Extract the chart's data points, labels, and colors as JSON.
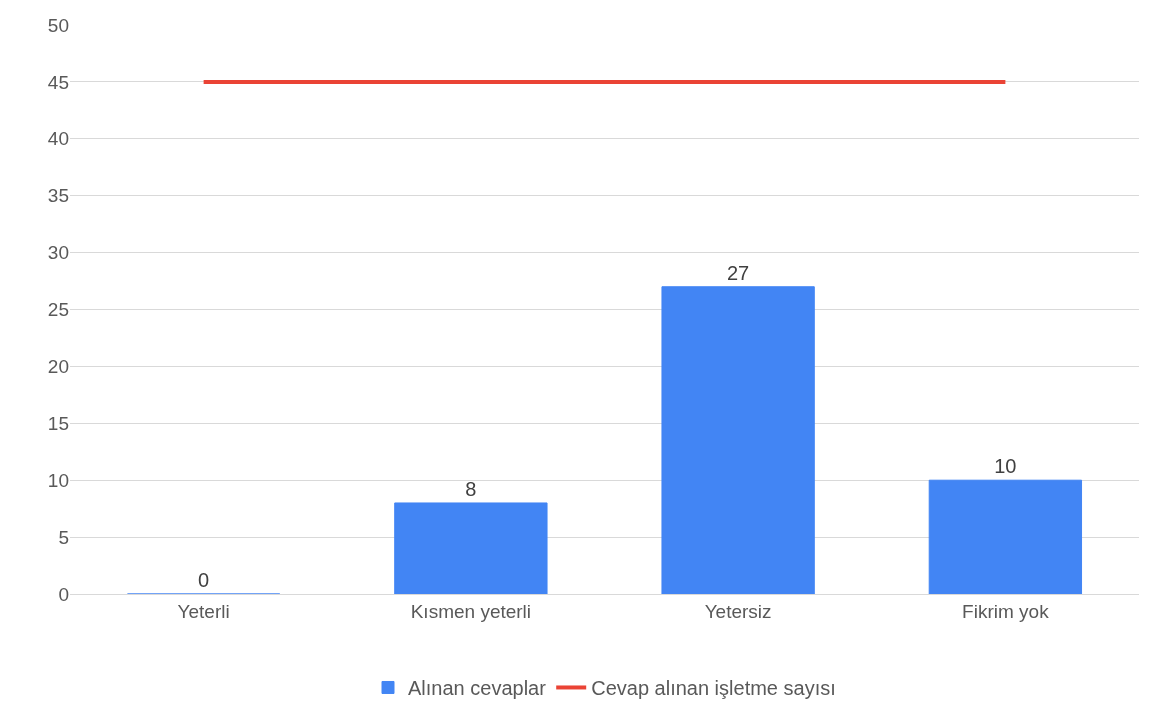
{
  "chart_data": {
    "type": "bar",
    "categories": [
      "Yeterli",
      "Kısmen yeterli",
      "Yetersiz",
      "Fikrim yok"
    ],
    "series": [
      {
        "name": "Alınan cevaplar",
        "color": "#4285f4",
        "values": [
          0,
          8,
          27,
          10
        ],
        "value_labels": [
          "0",
          "8",
          "27",
          "10"
        ]
      },
      {
        "name": "Cevap alınan işletme sayısı",
        "type": "line",
        "color": "#ea4335",
        "values": [
          45,
          45,
          45,
          45
        ],
        "marker": "none"
      }
    ],
    "ylim": [
      0,
      50
    ],
    "yticks": [
      0,
      5,
      10,
      15,
      20,
      25,
      30,
      35,
      40,
      45,
      50
    ],
    "grid": "y",
    "legend": "bottom"
  }
}
